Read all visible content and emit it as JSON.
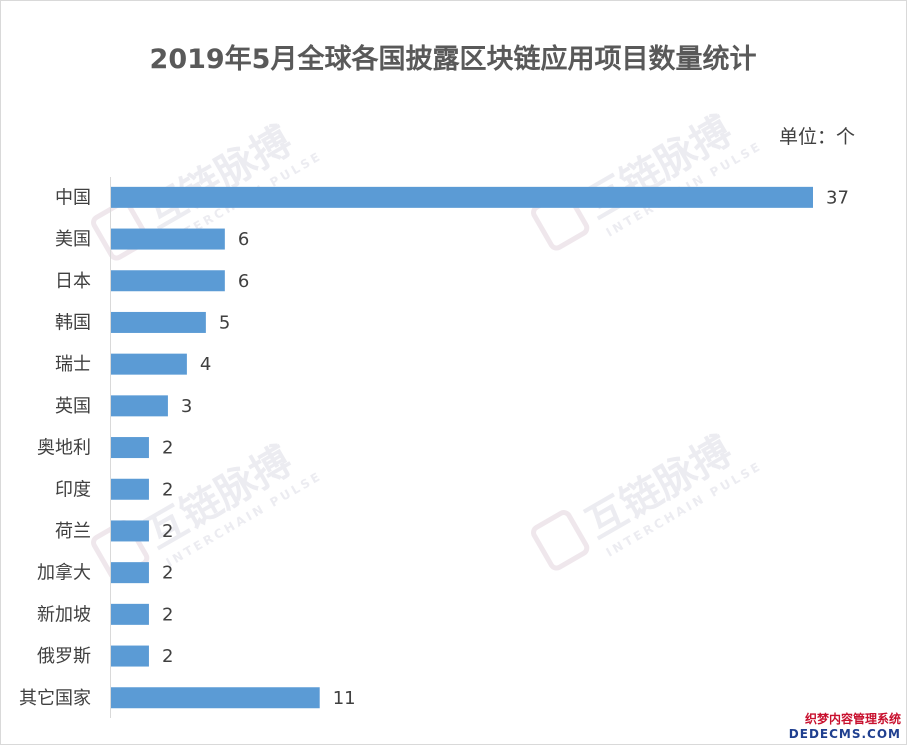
{
  "chart_data": {
    "type": "bar",
    "orientation": "horizontal",
    "title": "2019年5月全球各国披露区块链应用项目数量统计",
    "unit_label": "单位：个",
    "categories": [
      "中国",
      "美国",
      "日本",
      "韩国",
      "瑞士",
      "英国",
      "奥地利",
      "印度",
      "荷兰",
      "加拿大",
      "新加坡",
      "俄罗斯",
      "其它国家"
    ],
    "values": [
      37,
      6,
      6,
      5,
      4,
      3,
      2,
      2,
      2,
      2,
      2,
      2,
      11
    ],
    "bar_color": "#5b9bd5",
    "grid": false,
    "legend": "none"
  },
  "watermark": {
    "brand": "互链脉搏",
    "sub": "INTERCHAIN PULSE"
  },
  "corner": {
    "line1": "织梦内容管理系统",
    "line2": "DEDECMS.COM"
  }
}
